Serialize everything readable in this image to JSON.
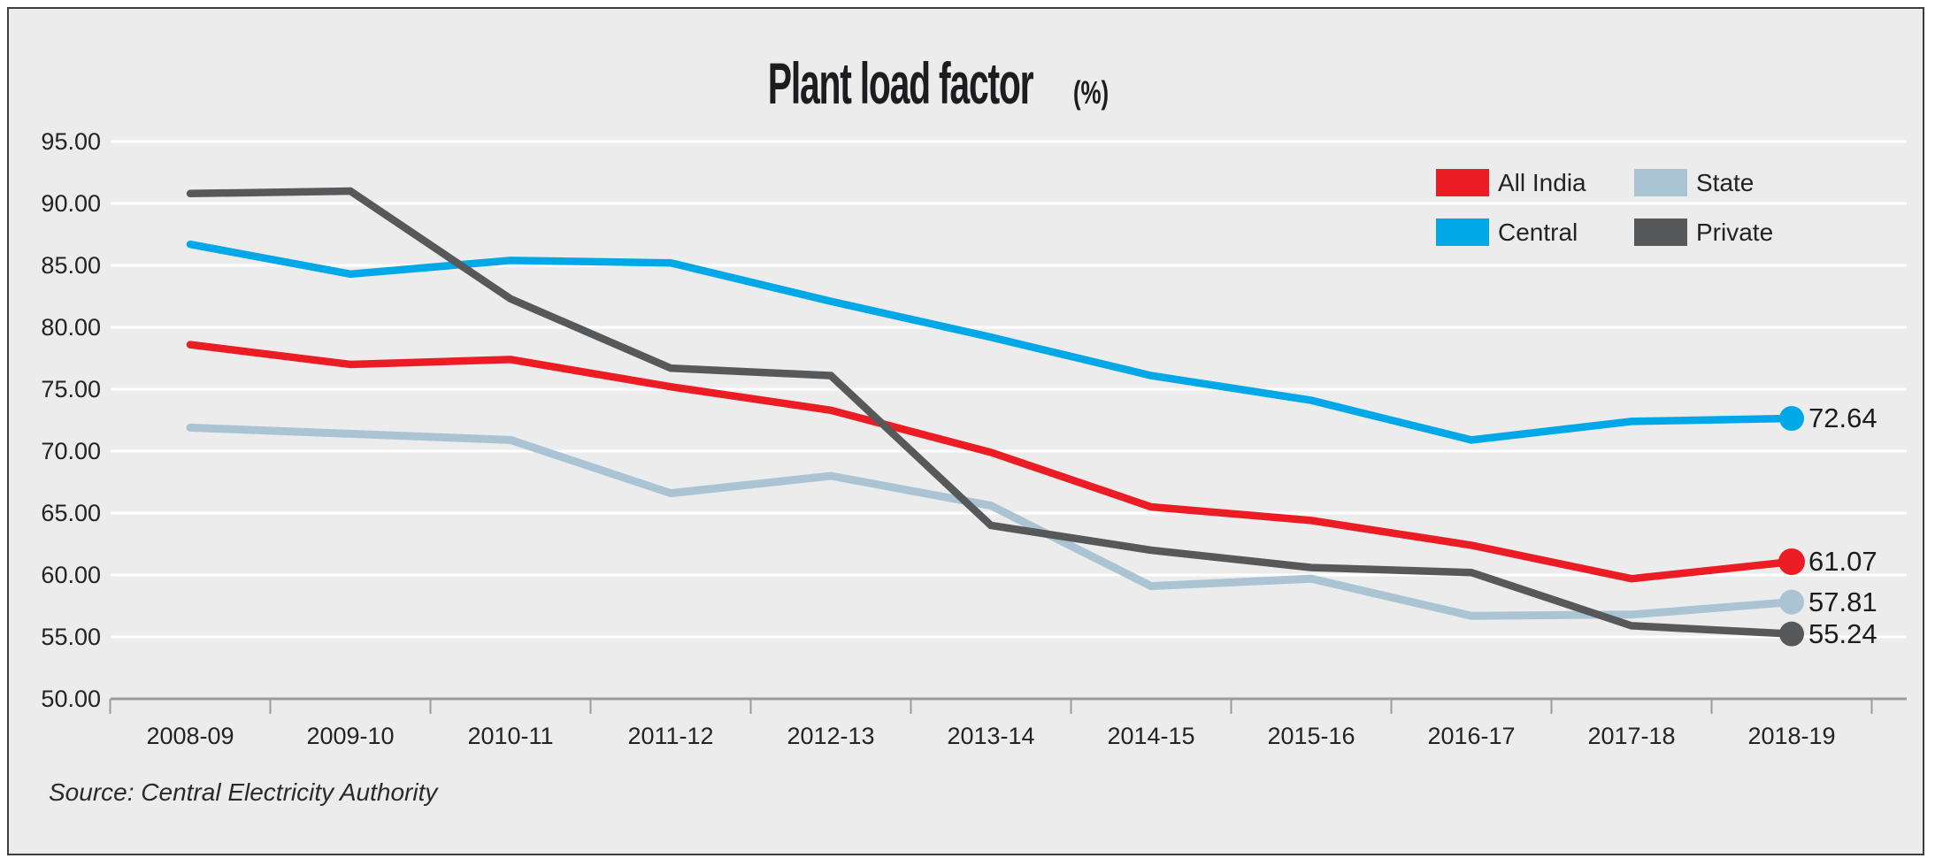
{
  "title": {
    "main": "Plant load factor",
    "unit": "(%)"
  },
  "source": "Source: Central Electricity Authority",
  "legend": {
    "items": [
      "All India",
      "State",
      "Central",
      "Private"
    ]
  },
  "colors": {
    "background": "#ececec",
    "gridline": "#ffffff",
    "axis": "#9b9b9b",
    "frame_border": "#3e3e40",
    "text": "#232323"
  },
  "chart_data": {
    "type": "line",
    "title": "Plant load factor (%)",
    "xlabel": "",
    "ylabel": "",
    "ylim": [
      50,
      95
    ],
    "grid": true,
    "legend_position": "top-right",
    "y_ticks": [
      "95.00",
      "90.00",
      "85.00",
      "80.00",
      "75.00",
      "70.00",
      "65.00",
      "60.00",
      "55.00",
      "50.00"
    ],
    "categories": [
      "2008-09",
      "2009-10",
      "2010-11",
      "2011-12",
      "2012-13",
      "2013-14",
      "2014-15",
      "2015-16",
      "2016-17",
      "2017-18",
      "2018-19"
    ],
    "series": [
      {
        "name": "All India",
        "color": "#ec1c24",
        "values": [
          78.6,
          77.0,
          77.4,
          75.2,
          73.3,
          69.9,
          65.5,
          64.4,
          62.4,
          59.7,
          61.07
        ],
        "end_label": "61.07"
      },
      {
        "name": "Central",
        "color": "#00a8e8",
        "values": [
          86.7,
          84.3,
          85.4,
          85.2,
          82.1,
          79.2,
          76.1,
          74.1,
          70.9,
          72.4,
          72.64
        ],
        "end_label": "72.64"
      },
      {
        "name": "State",
        "color": "#aac4d4",
        "values": [
          71.9,
          71.4,
          70.9,
          66.6,
          68.0,
          65.6,
          59.1,
          59.7,
          56.7,
          56.8,
          57.81
        ],
        "end_label": "57.81"
      },
      {
        "name": "Private",
        "color": "#57585a",
        "values": [
          90.8,
          91.0,
          82.3,
          76.7,
          76.1,
          64.0,
          62.0,
          60.6,
          60.2,
          55.9,
          55.24
        ],
        "end_label": "55.24"
      }
    ]
  }
}
